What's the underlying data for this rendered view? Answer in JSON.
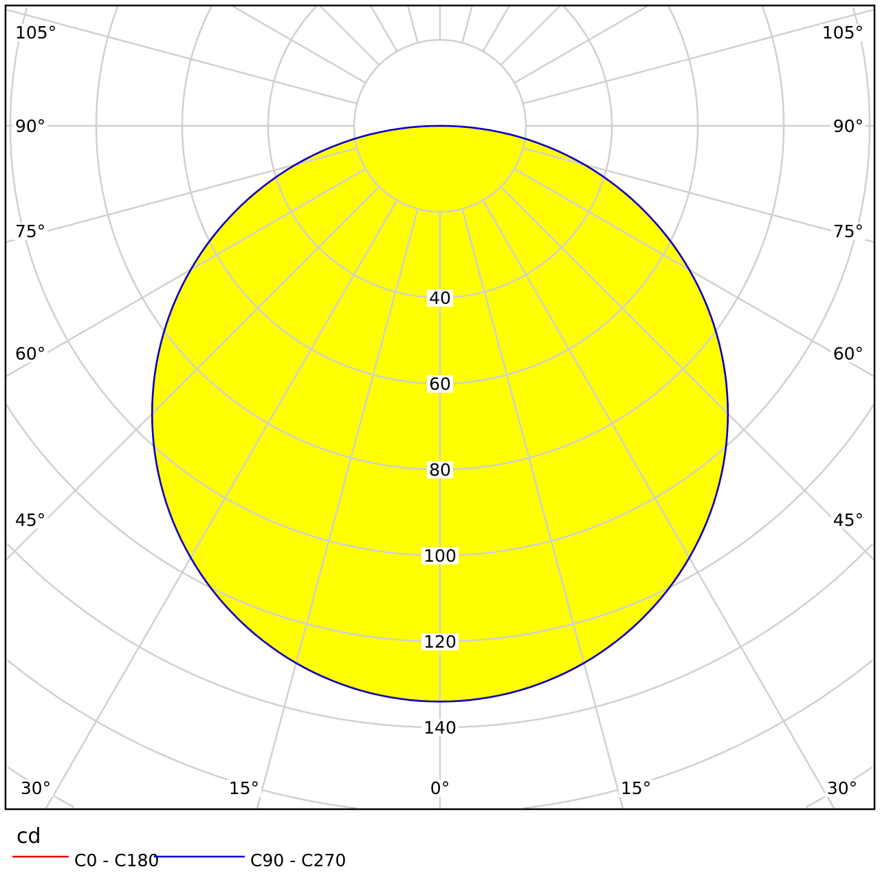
{
  "chart_data": {
    "type": "polar",
    "unit_label": "cd",
    "radial_ticks": [
      40,
      60,
      80,
      100,
      120,
      140
    ],
    "radial_grid_step": 20,
    "angle_grid_step_deg": 15,
    "angle_labels": {
      "left": [
        "105°",
        "90°",
        "75°",
        "60°",
        "45°"
      ],
      "right": [
        "105°",
        "90°",
        "75°",
        "60°",
        "45°"
      ],
      "bottom": [
        "30°",
        "15°",
        "0°",
        "15°",
        "30°"
      ]
    },
    "grid": true,
    "fill_color": "#ffff00",
    "angles_deg": [
      -90,
      -80,
      -70,
      -60,
      -50,
      -40,
      -30,
      -20,
      -10,
      0,
      10,
      20,
      30,
      40,
      50,
      60,
      70,
      80,
      90
    ],
    "series": [
      {
        "name": "C0 - C180",
        "color": "#e00000",
        "values": [
          0,
          23.3,
          45.8,
          67,
          86.1,
          102.6,
          116,
          125.9,
          131.9,
          134,
          131.9,
          125.9,
          116,
          102.6,
          86.1,
          67,
          45.8,
          23.3,
          0
        ]
      },
      {
        "name": "C90 - C270",
        "color": "#0000cc",
        "values": [
          0,
          23.3,
          45.8,
          67,
          86.1,
          102.6,
          116,
          125.9,
          131.9,
          134,
          131.9,
          125.9,
          116,
          102.6,
          86.1,
          67,
          45.8,
          23.3,
          0
        ]
      }
    ],
    "legend": "bottom-left"
  }
}
